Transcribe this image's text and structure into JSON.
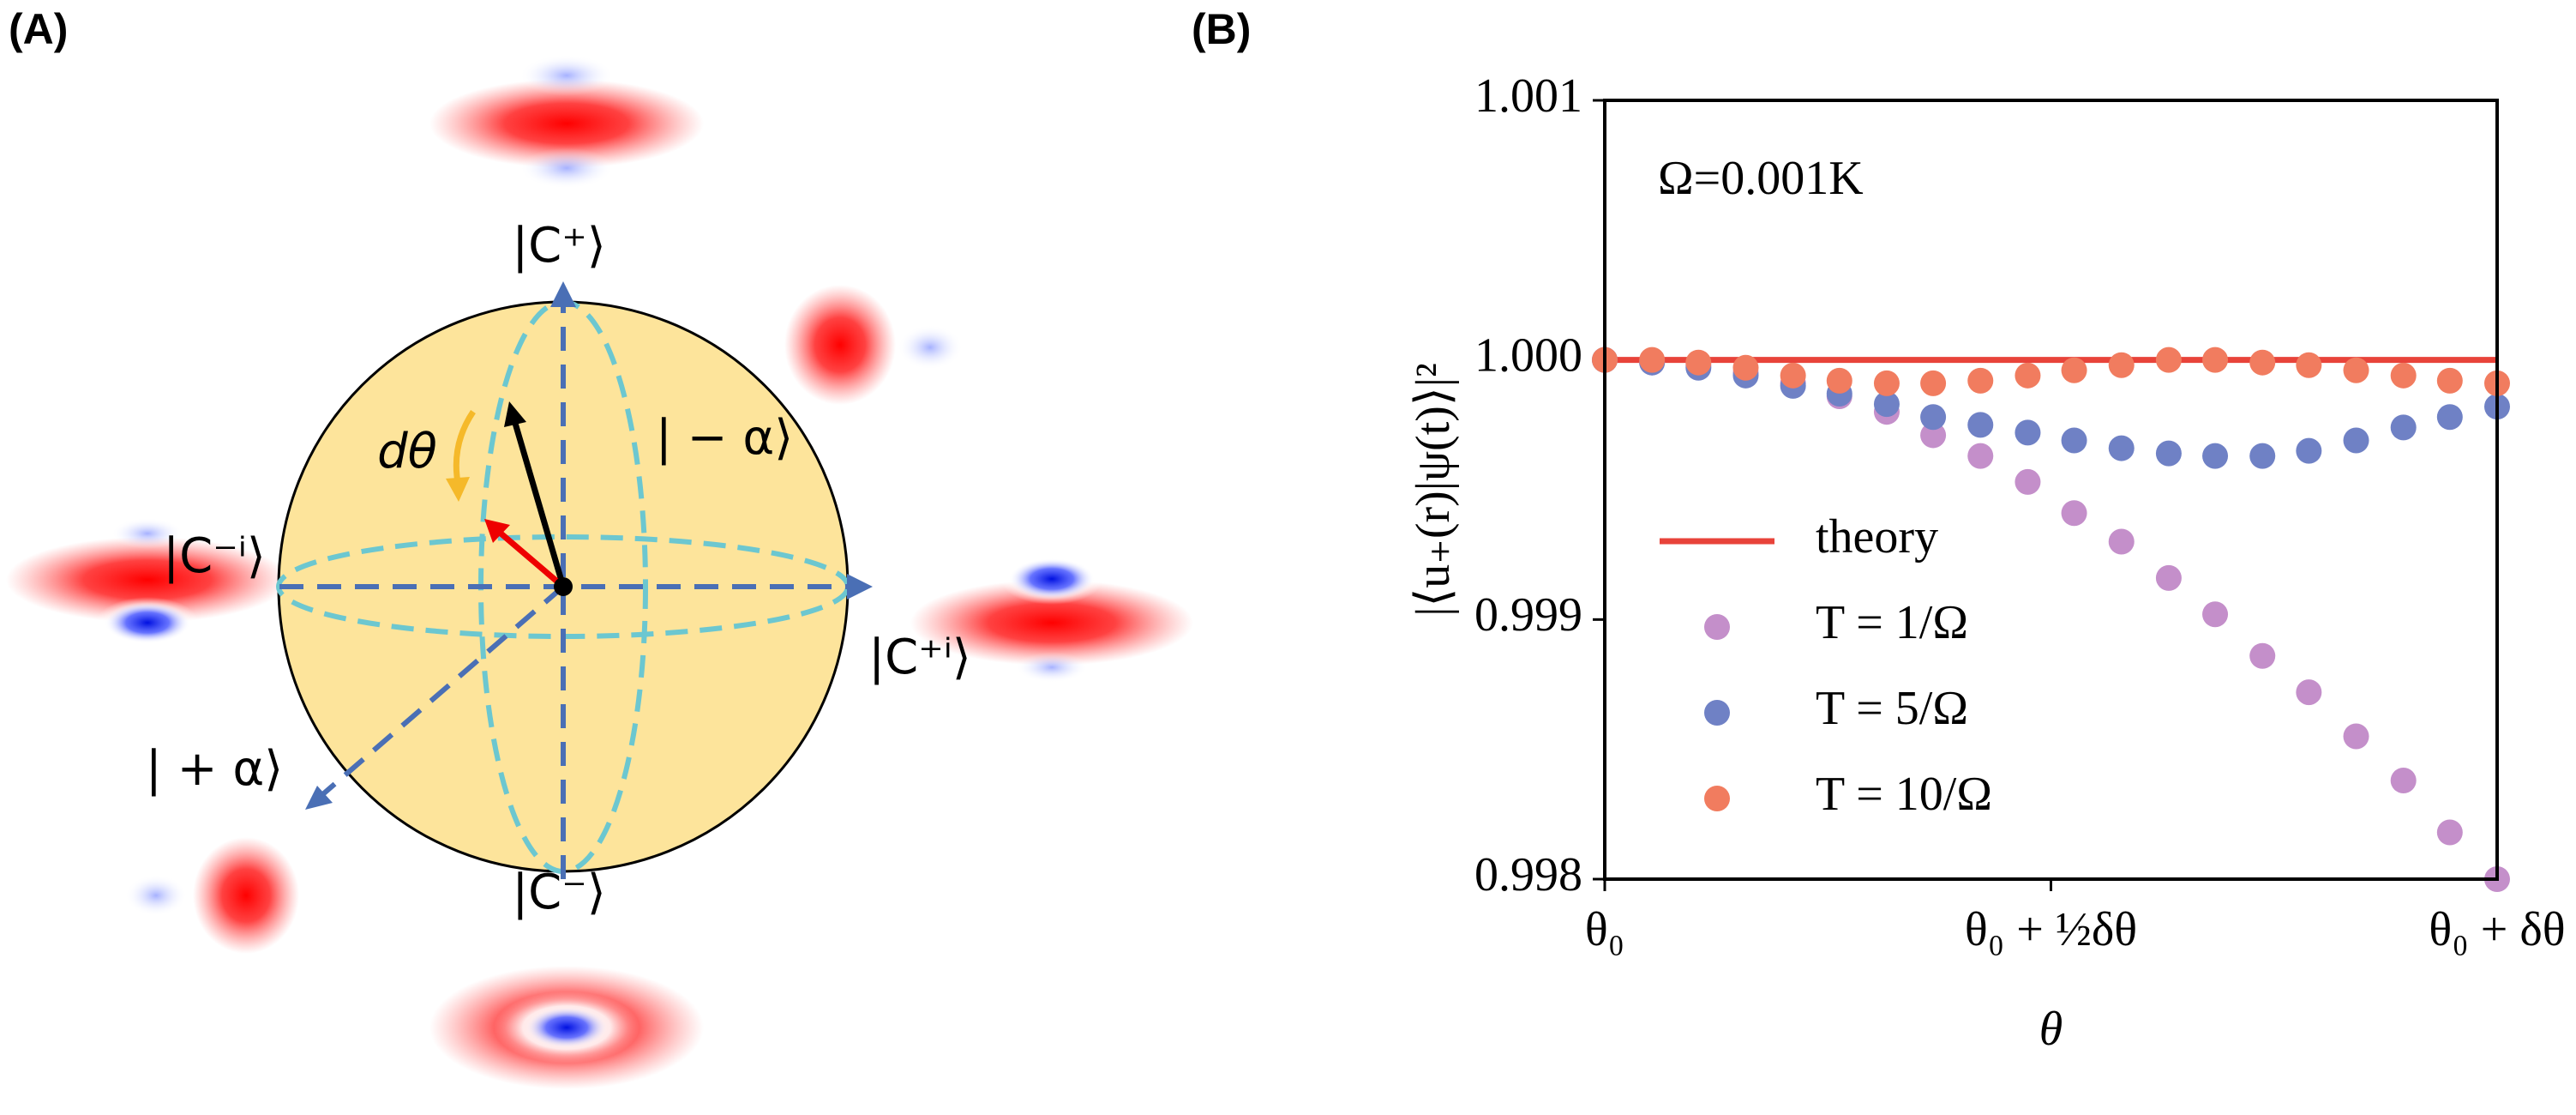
{
  "panel_a": {
    "panel_label": "(A)",
    "labels": [
      "|C⁺⟩",
      "|C⁻ⁱ⟩",
      "|C⁺ⁱ⟩",
      "| − α⟩",
      "| + α⟩",
      "|C⁻⟩",
      "dθ"
    ]
  },
  "chart_data": {
    "type": "scatter",
    "panel_label": "(B)",
    "annotation": "Ω=0.001K",
    "xlabel": "θ",
    "ylabel": "|⟨u₊(r)|ψ(t)⟩|²",
    "x": [
      0,
      0.053,
      0.105,
      0.158,
      0.211,
      0.263,
      0.316,
      0.368,
      0.421,
      0.474,
      0.526,
      0.579,
      0.632,
      0.684,
      0.737,
      0.789,
      0.842,
      0.895,
      0.947,
      1
    ],
    "xlim": [
      0,
      1
    ],
    "ylim": [
      0.998,
      1.001
    ],
    "xticks": [
      {
        "value": 0,
        "label": "θ₀"
      },
      {
        "value": 0.5,
        "label": "θ₀ + ½δθ"
      },
      {
        "value": 1,
        "label": "θ₀ + δθ"
      }
    ],
    "yticks": [
      0.998,
      0.999,
      {
        "value": 1,
        "label": "1.000"
      },
      1.001
    ],
    "legend": "center left",
    "series": [
      {
        "name": "theory",
        "type": "line",
        "color": "#e8433a",
        "values": [
          1,
          1,
          1,
          1,
          1,
          1,
          1,
          1,
          1,
          1,
          1,
          1,
          1,
          1,
          1,
          1,
          1,
          1,
          1,
          1
        ]
      },
      {
        "name": "T = 1/Ω",
        "type": "scatter",
        "color": "#c48fca",
        "values": [
          1,
          0.99999,
          0.99998,
          0.99995,
          0.99991,
          0.99986,
          0.9998,
          0.99971,
          0.99963,
          0.99953,
          0.99941,
          0.9993,
          0.99916,
          0.99902,
          0.99886,
          0.99872,
          0.99855,
          0.99838,
          0.99818,
          0.998
        ]
      },
      {
        "name": "T = 5/Ω",
        "type": "scatter",
        "color": "#6f81c5",
        "values": [
          1,
          0.99999,
          0.99997,
          0.99994,
          0.9999,
          0.99987,
          0.99983,
          0.99978,
          0.99975,
          0.99972,
          0.99969,
          0.99966,
          0.99964,
          0.99963,
          0.99963,
          0.99965,
          0.99969,
          0.99974,
          0.99978,
          0.99982
        ]
      },
      {
        "name": "T = 10/Ω",
        "type": "scatter",
        "color": "#f17c5f",
        "values": [
          1,
          1,
          0.99999,
          0.99997,
          0.99994,
          0.99992,
          0.99991,
          0.99991,
          0.99992,
          0.99994,
          0.99996,
          0.99998,
          1,
          1,
          0.99999,
          0.99998,
          0.99996,
          0.99994,
          0.99992,
          0.99991
        ]
      }
    ]
  }
}
